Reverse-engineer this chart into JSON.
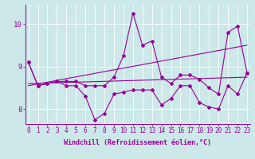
{
  "xlabel": "Windchill (Refroidissement éolien,°C)",
  "x": [
    0,
    1,
    2,
    3,
    4,
    5,
    6,
    7,
    8,
    9,
    10,
    11,
    12,
    13,
    14,
    15,
    16,
    17,
    18,
    19,
    20,
    21,
    22,
    23
  ],
  "line1": [
    9.1,
    8.55,
    8.6,
    8.65,
    8.65,
    8.65,
    8.55,
    8.55,
    8.55,
    8.75,
    9.25,
    10.25,
    9.5,
    9.6,
    8.75,
    8.6,
    8.8,
    8.8,
    8.7,
    8.5,
    8.35,
    9.8,
    9.95,
    8.85
  ],
  "line2": [
    9.1,
    8.55,
    8.6,
    8.65,
    8.55,
    8.55,
    8.3,
    7.75,
    7.9,
    8.35,
    8.4,
    8.45,
    8.45,
    8.45,
    8.1,
    8.25,
    8.55,
    8.55,
    8.15,
    8.05,
    8.0,
    8.55,
    8.35,
    8.85
  ],
  "trend1_x": [
    0,
    23
  ],
  "trend1_y": [
    8.6,
    8.75
  ],
  "trend2_x": [
    0,
    23
  ],
  "trend2_y": [
    8.55,
    9.5
  ],
  "line_color": "#990099",
  "bg_color": "#cce8e8",
  "grid_color": "#b0d8d8",
  "ylim": [
    7.65,
    10.45
  ],
  "xlim": [
    -0.3,
    23.3
  ],
  "yticks": [
    8,
    9,
    10
  ],
  "xticks": [
    0,
    1,
    2,
    3,
    4,
    5,
    6,
    7,
    8,
    9,
    10,
    11,
    12,
    13,
    14,
    15,
    16,
    17,
    18,
    19,
    20,
    21,
    22,
    23
  ],
  "tick_fontsize": 5.5,
  "xlabel_fontsize": 6.0,
  "marker": "D",
  "markersize": 2.0,
  "linewidth": 0.8
}
